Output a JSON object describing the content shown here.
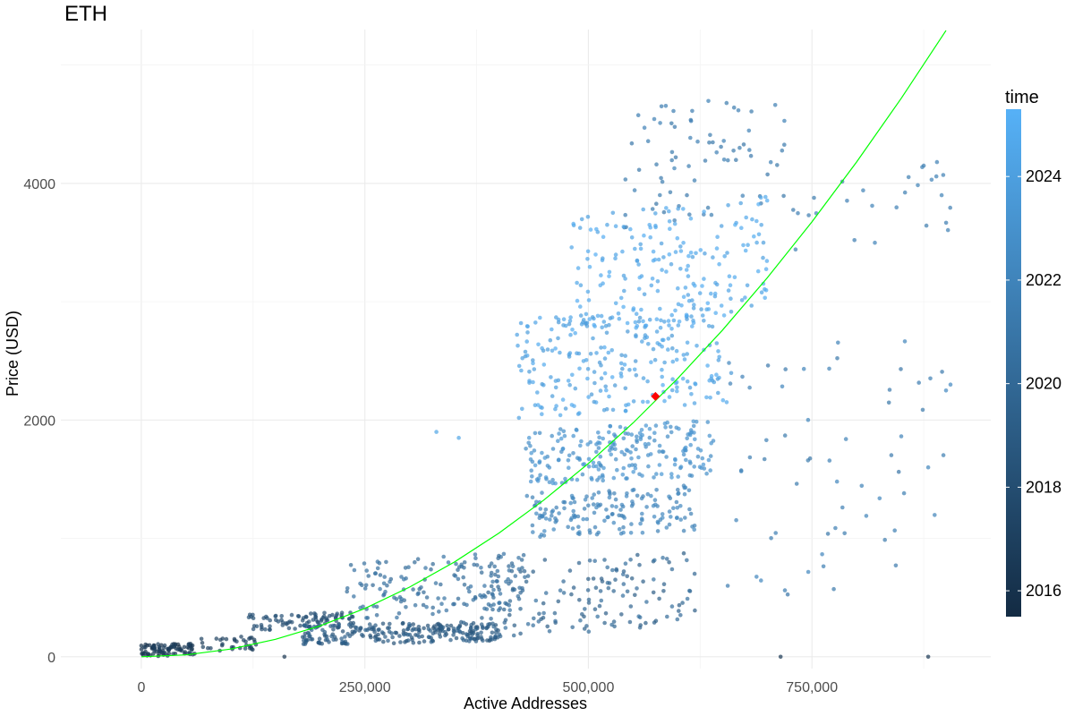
{
  "chart_data": {
    "type": "scatter",
    "title": "ETH",
    "xlabel": "Active Addresses",
    "ylabel": "Price (USD)",
    "xlim": [
      -90000,
      950000
    ],
    "ylim": [
      -100,
      5300
    ],
    "x_ticks": [
      0,
      250000,
      500000,
      750000
    ],
    "x_tick_labels": [
      "0",
      "250,000",
      "500,000",
      "750,000"
    ],
    "y_ticks": [
      0,
      2000,
      4000
    ],
    "y_tick_labels": [
      "0",
      "2000",
      "4000"
    ],
    "grid": true,
    "legend": {
      "title": "time",
      "placement": "right",
      "type": "colorbar",
      "range": [
        2015.5,
        2025.3
      ],
      "ticks": [
        2016,
        2018,
        2020,
        2022,
        2024
      ],
      "tick_labels": [
        "2016",
        "2018",
        "2020",
        "2022",
        "2024"
      ],
      "color_low": "#132b43",
      "color_high": "#56b1f7"
    },
    "fit_line": {
      "color": "#00ff00",
      "points": [
        [
          0,
          0
        ],
        [
          50000,
          16
        ],
        [
          100000,
          65
        ],
        [
          150000,
          147
        ],
        [
          200000,
          261
        ],
        [
          250000,
          408
        ],
        [
          300000,
          588
        ],
        [
          350000,
          800
        ],
        [
          400000,
          1045
        ],
        [
          450000,
          1323
        ],
        [
          500000,
          1633
        ],
        [
          550000,
          1976
        ],
        [
          600000,
          2352
        ],
        [
          650000,
          2760
        ],
        [
          700000,
          3201
        ],
        [
          750000,
          3675
        ],
        [
          800000,
          4181
        ],
        [
          850000,
          4720
        ],
        [
          900000,
          5292
        ]
      ]
    },
    "highlight_point": {
      "x": 575000,
      "y": 2200,
      "color": "#ff0000"
    },
    "clusters": [
      {
        "x": [
          0,
          60000
        ],
        "y": [
          0,
          120
        ],
        "t": [
          2015.6,
          2017.0
        ],
        "n": 90
      },
      {
        "x": [
          60000,
          130000
        ],
        "y": [
          40,
          180
        ],
        "t": [
          2016.6,
          2017.3
        ],
        "n": 35
      },
      {
        "x": [
          120000,
          240000
        ],
        "y": [
          220,
          380
        ],
        "t": [
          2017.9,
          2018.3
        ],
        "n": 90
      },
      {
        "x": [
          180000,
          400000
        ],
        "y": [
          100,
          300
        ],
        "t": [
          2018.1,
          2019.6
        ],
        "n": 260
      },
      {
        "x": [
          230000,
          430000
        ],
        "y": [
          300,
          900
        ],
        "t": [
          2019.8,
          2020.9
        ],
        "n": 160
      },
      {
        "x": [
          380000,
          620000
        ],
        "y": [
          150,
          900
        ],
        "t": [
          2019.0,
          2020.6
        ],
        "n": 150
      },
      {
        "x": [
          430000,
          620000
        ],
        "y": [
          1000,
          1450
        ],
        "t": [
          2021.6,
          2022.4
        ],
        "n": 160
      },
      {
        "x": [
          430000,
          640000
        ],
        "y": [
          1450,
          2000
        ],
        "t": [
          2022.4,
          2023.4
        ],
        "n": 220
      },
      {
        "x": [
          420000,
          660000
        ],
        "y": [
          2000,
          3000
        ],
        "t": [
          2023.4,
          2024.9
        ],
        "n": 240
      },
      {
        "x": [
          480000,
          700000
        ],
        "y": [
          2700,
          3900
        ],
        "t": [
          2023.9,
          2025.1
        ],
        "n": 200
      },
      {
        "x": [
          540000,
          720000
        ],
        "y": [
          3600,
          4800
        ],
        "t": [
          2020.9,
          2021.8
        ],
        "n": 75
      },
      {
        "x": [
          650000,
          900000
        ],
        "y": [
          300,
          2900
        ],
        "t": [
          2020.8,
          2022.2
        ],
        "n": 60
      },
      {
        "x": [
          720000,
          910000
        ],
        "y": [
          3300,
          4200
        ],
        "t": [
          2021.1,
          2021.9
        ],
        "n": 25
      }
    ],
    "extra_points": [
      {
        "x": 330000,
        "y": 1900,
        "t": 2024.4
      },
      {
        "x": 355000,
        "y": 1850,
        "t": 2024.4
      },
      {
        "x": 160000,
        "y": 0,
        "t": 2016.2
      },
      {
        "x": 715000,
        "y": 0,
        "t": 2016.3
      },
      {
        "x": 880000,
        "y": 0,
        "t": 2016.3
      },
      {
        "x": 880000,
        "y": 1600,
        "t": 2022.0
      },
      {
        "x": 900000,
        "y": 2250,
        "t": 2022.3
      },
      {
        "x": 905000,
        "y": 2300,
        "t": 2022.3
      },
      {
        "x": 895000,
        "y": 3900,
        "t": 2021.8
      },
      {
        "x": 875000,
        "y": 4150,
        "t": 2021.4
      }
    ]
  }
}
